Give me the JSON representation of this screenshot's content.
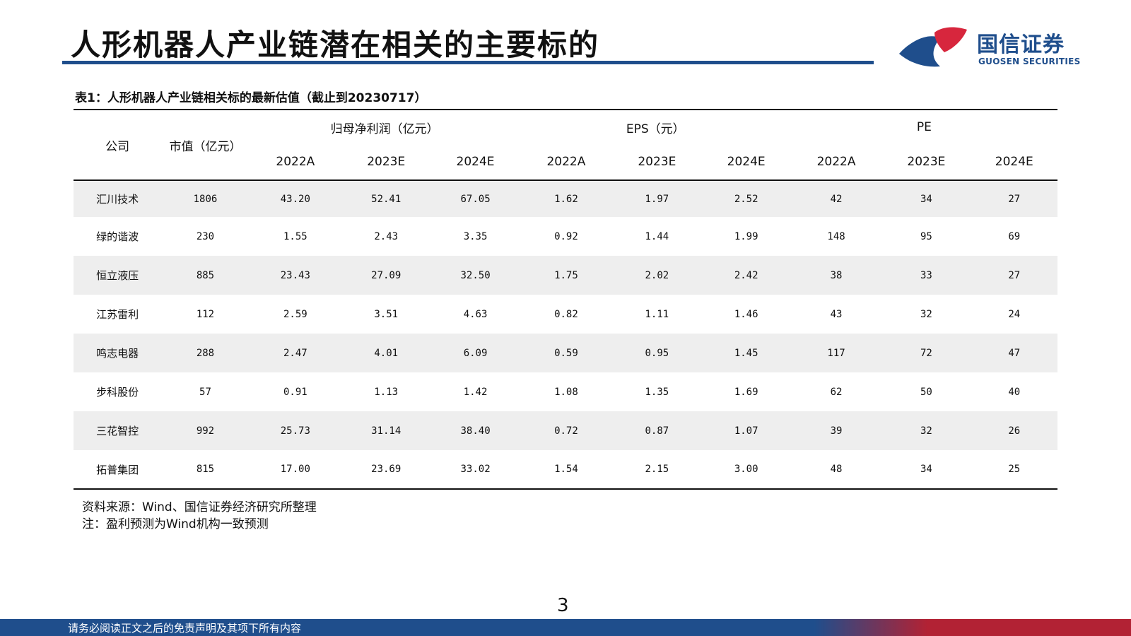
{
  "page": {
    "title": "人形机器人产业链潜在相关的主要标的",
    "number": "3"
  },
  "logo": {
    "cn": "国信证券",
    "en": "GUOSEN SECURITIES",
    "colors": {
      "blue": "#1f4e8c",
      "red": "#d7263d"
    }
  },
  "table": {
    "caption": "表1：人形机器人产业链相关标的最新估值（截止到20230717）",
    "headers": {
      "company": "公司",
      "market_cap": "市值（亿元）",
      "groups": [
        "归母净利润（亿元）",
        "EPS（元）",
        "PE"
      ],
      "years": [
        "2022A",
        "2023E",
        "2024E",
        "2022A",
        "2023E",
        "2024E",
        "2022A",
        "2023E",
        "2024E"
      ]
    },
    "rows": [
      {
        "name": "汇川技术",
        "cap": "1806",
        "values": [
          "43.20",
          "52.41",
          "67.05",
          "1.62",
          "1.97",
          "2.52",
          "42",
          "34",
          "27"
        ]
      },
      {
        "name": "绿的谐波",
        "cap": "230",
        "values": [
          "1.55",
          "2.43",
          "3.35",
          "0.92",
          "1.44",
          "1.99",
          "148",
          "95",
          "69"
        ]
      },
      {
        "name": "恒立液压",
        "cap": "885",
        "values": [
          "23.43",
          "27.09",
          "32.50",
          "1.75",
          "2.02",
          "2.42",
          "38",
          "33",
          "27"
        ]
      },
      {
        "name": "江苏雷利",
        "cap": "112",
        "values": [
          "2.59",
          "3.51",
          "4.63",
          "0.82",
          "1.11",
          "1.46",
          "43",
          "32",
          "24"
        ]
      },
      {
        "name": "鸣志电器",
        "cap": "288",
        "values": [
          "2.47",
          "4.01",
          "6.09",
          "0.59",
          "0.95",
          "1.45",
          "117",
          "72",
          "47"
        ]
      },
      {
        "name": "步科股份",
        "cap": "57",
        "values": [
          "0.91",
          "1.13",
          "1.42",
          "1.08",
          "1.35",
          "1.69",
          "62",
          "50",
          "40"
        ]
      },
      {
        "name": "三花智控",
        "cap": "992",
        "values": [
          "25.73",
          "31.14",
          "38.40",
          "0.72",
          "0.87",
          "1.07",
          "39",
          "32",
          "26"
        ]
      },
      {
        "name": "拓普集团",
        "cap": "815",
        "values": [
          "17.00",
          "23.69",
          "33.02",
          "1.54",
          "2.15",
          "3.00",
          "48",
          "34",
          "25"
        ]
      }
    ]
  },
  "notes": {
    "source": "资料来源：Wind、国信证券经济研究所整理",
    "note": "注：盈利预测为Wind机构一致预测"
  },
  "footer": {
    "disclaimer": "请务必阅读正文之后的免责声明及其项下所有内容"
  }
}
